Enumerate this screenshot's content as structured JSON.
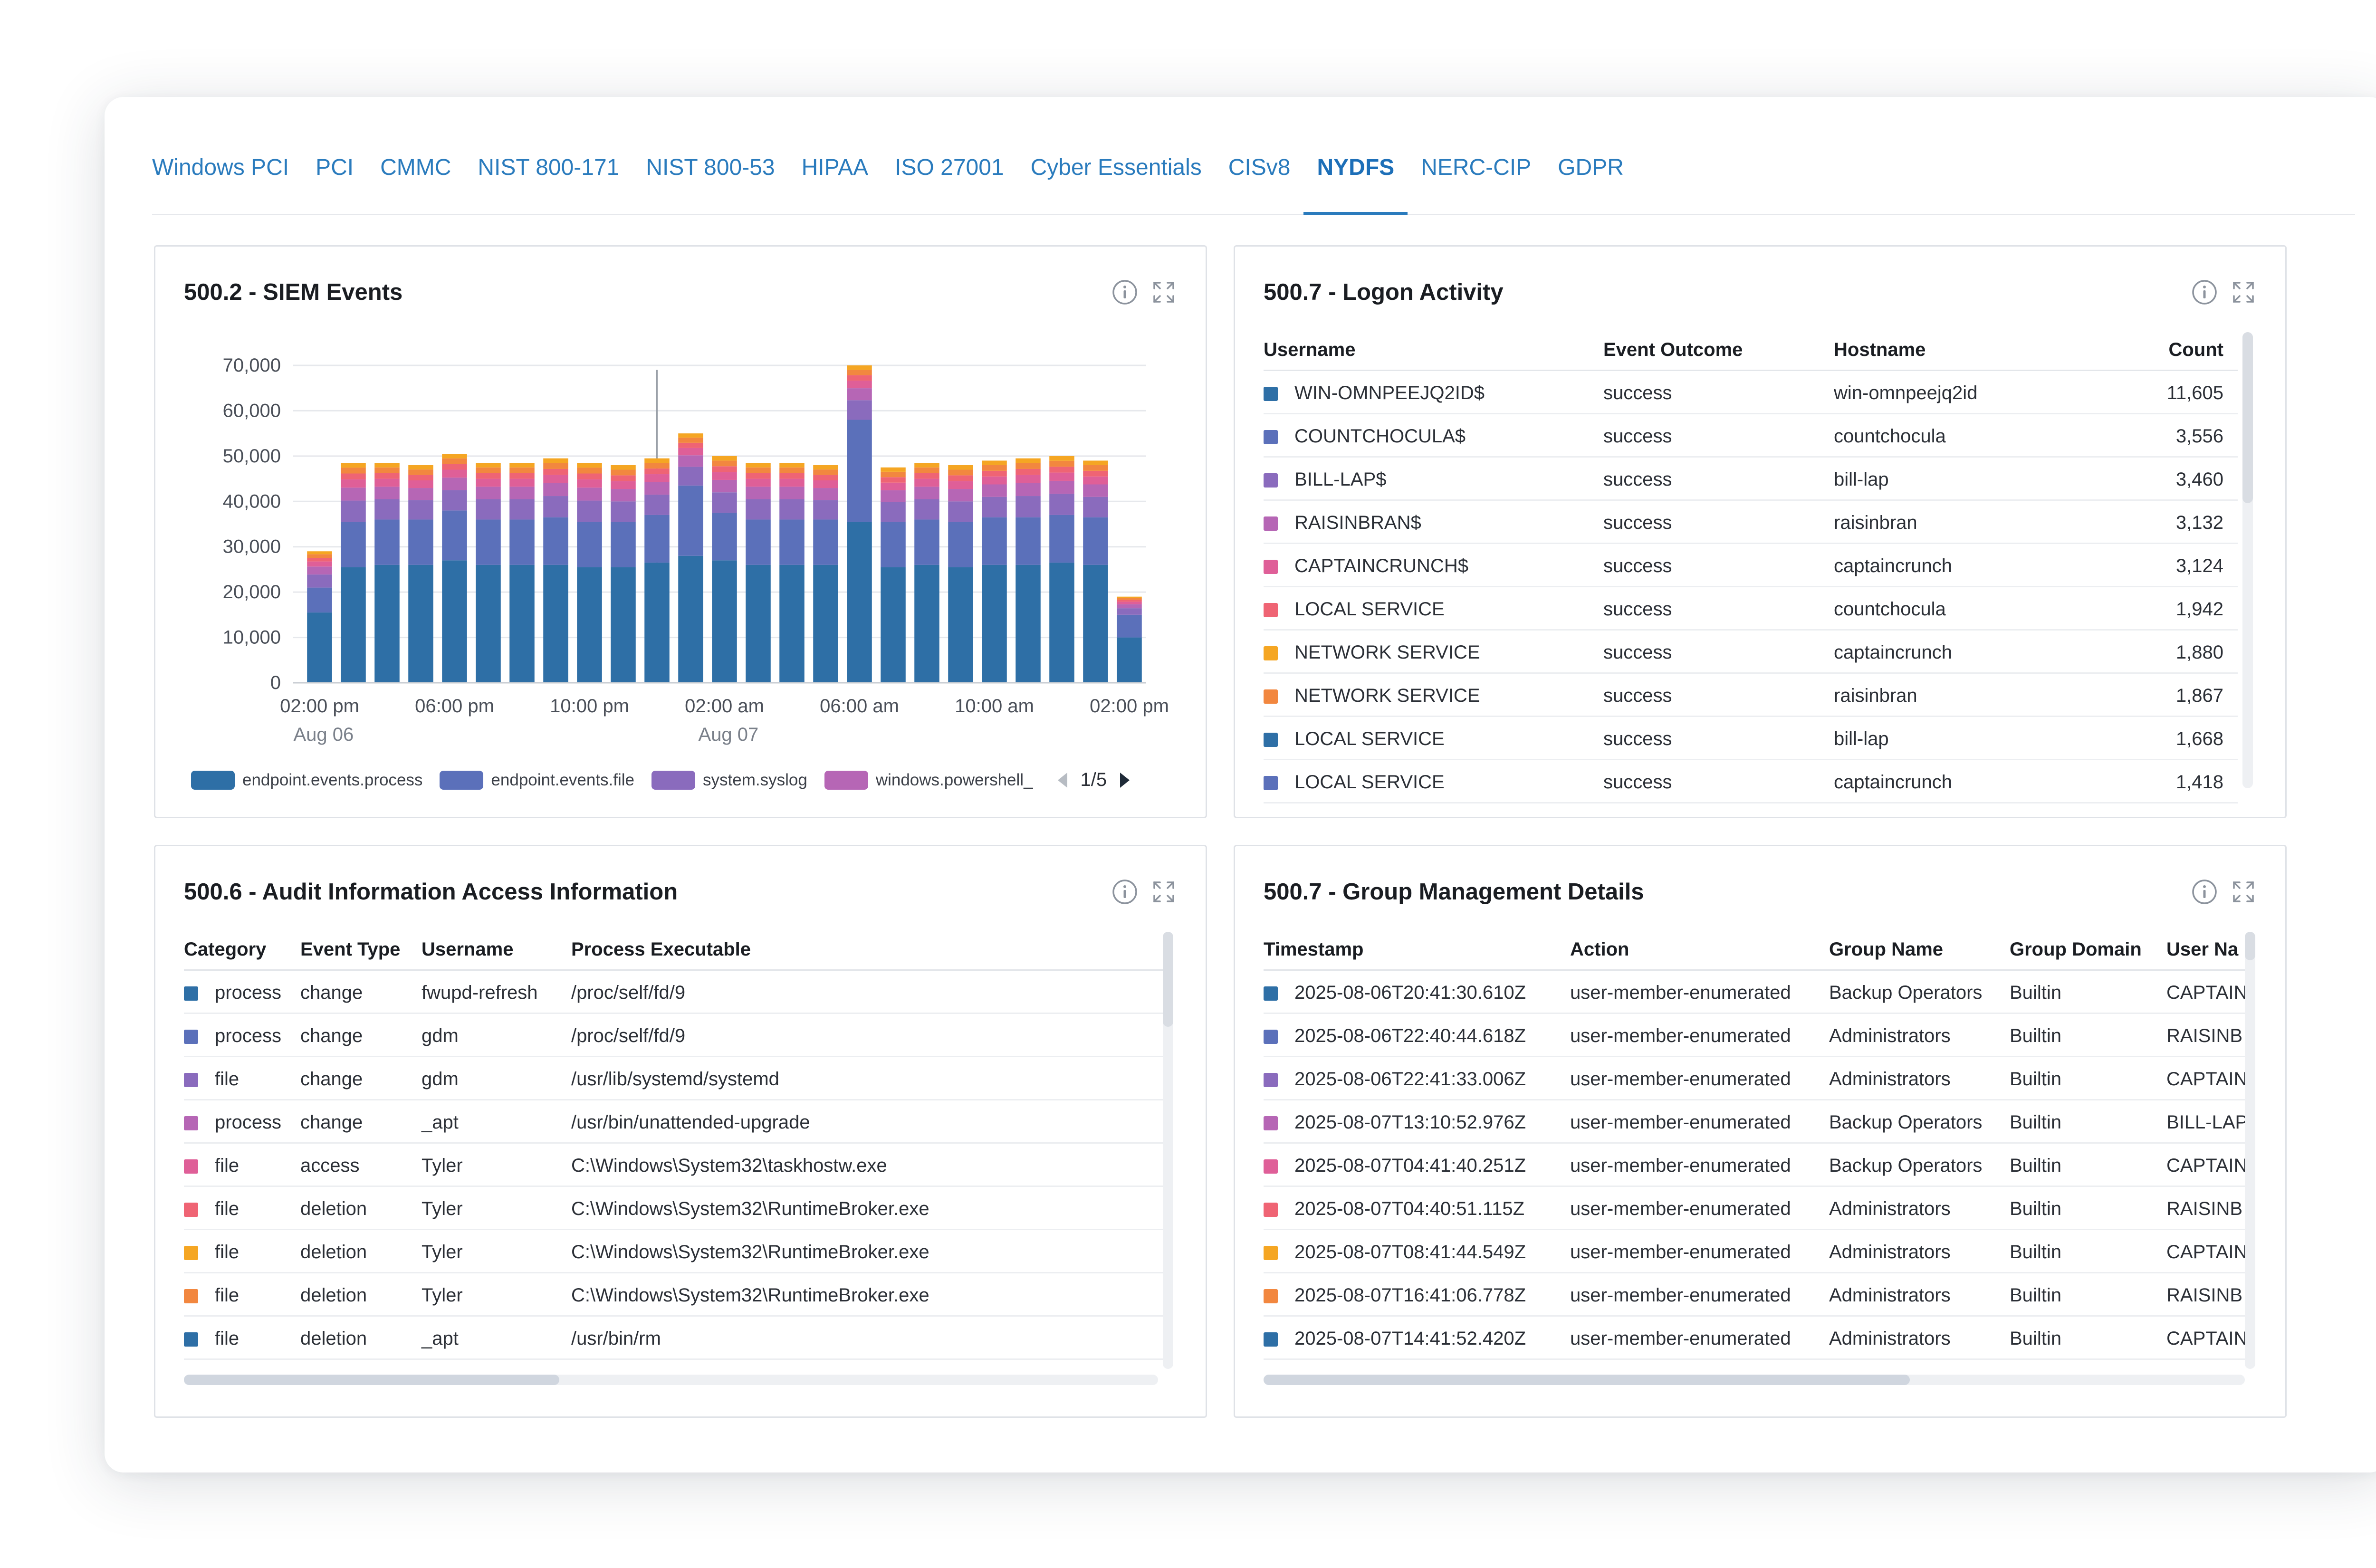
{
  "tabs": [
    "Windows PCI",
    "PCI",
    "CMMC",
    "NIST 800-171",
    "NIST 800-53",
    "HIPAA",
    "ISO 27001",
    "Cyber Essentials",
    "CISv8",
    "NYDFS",
    "NERC-CIP",
    "GDPR"
  ],
  "active_tab": "NYDFS",
  "icons": {
    "info": "info-circle-icon",
    "expand": "expand-arrows-icon"
  },
  "colors": [
    "#2e6fa6",
    "#5b70ba",
    "#8a6bbd",
    "#b666b5",
    "#df5f98",
    "#ef6474",
    "#f5a623",
    "#f2873f"
  ],
  "siem": {
    "title": "500.2 - SIEM Events",
    "legend": [
      "endpoint.events.process",
      "endpoint.events.file",
      "system.syslog",
      "windows.powershell_"
    ],
    "pager": "1/5"
  },
  "chart_data": {
    "type": "bar",
    "stacked": true,
    "title": "500.2 - SIEM Events",
    "y_ticks": [
      "70,000",
      "60,000",
      "50,000",
      "40,000",
      "30,000",
      "20,000",
      "10,000",
      "0"
    ],
    "ylim": [
      0,
      70000
    ],
    "x_ticks": [
      {
        "label": "02:00 pm",
        "sub": "Aug 06",
        "index": 0
      },
      {
        "label": "06:00 pm",
        "sub": "",
        "index": 4
      },
      {
        "label": "10:00 pm",
        "sub": "",
        "index": 8
      },
      {
        "label": "02:00 am",
        "sub": "Aug 07",
        "index": 12
      },
      {
        "label": "06:00 am",
        "sub": "",
        "index": 16
      },
      {
        "label": "10:00 am",
        "sub": "",
        "index": 20
      },
      {
        "label": "02:00 pm",
        "sub": "",
        "index": 24
      }
    ],
    "series_names": [
      "endpoint.events.process",
      "endpoint.events.file",
      "system.syslog",
      "windows.powershell_"
    ],
    "totals": [
      29000,
      48500,
      48500,
      48000,
      50500,
      48500,
      48500,
      49500,
      48500,
      48000,
      49500,
      55000,
      50000,
      48500,
      48500,
      48000,
      70000,
      47500,
      48500,
      48000,
      49000,
      49500,
      50000,
      49000,
      19000
    ],
    "process": [
      15500,
      25500,
      26000,
      26000,
      27000,
      26000,
      26000,
      26000,
      25500,
      25500,
      26500,
      28000,
      27000,
      26000,
      26000,
      26000,
      35500,
      25500,
      26000,
      25500,
      26000,
      26000,
      26500,
      26000,
      10000
    ],
    "file": [
      5500,
      10000,
      10000,
      10000,
      11000,
      10000,
      10000,
      10500,
      10000,
      10000,
      10500,
      15500,
      10500,
      10000,
      10000,
      10000,
      22500,
      10000,
      10000,
      10000,
      10500,
      10500,
      10500,
      10500,
      5000
    ],
    "annotation_line_index": 10
  },
  "logon": {
    "title": "500.7 - Logon Activity",
    "columns": [
      "Username",
      "Event Outcome",
      "Hostname",
      "Count"
    ],
    "rows": [
      [
        "WIN-OMNPEEJQ2ID$",
        "success",
        "win-omnpeejq2id",
        "11,605"
      ],
      [
        "COUNTCHOCULA$",
        "success",
        "countchocula",
        "3,556"
      ],
      [
        "BILL-LAP$",
        "success",
        "bill-lap",
        "3,460"
      ],
      [
        "RAISINBRAN$",
        "success",
        "raisinbran",
        "3,132"
      ],
      [
        "CAPTAINCRUNCH$",
        "success",
        "captaincrunch",
        "3,124"
      ],
      [
        "LOCAL SERVICE",
        "success",
        "countchocula",
        "1,942"
      ],
      [
        "NETWORK SERVICE",
        "success",
        "captaincrunch",
        "1,880"
      ],
      [
        "NETWORK SERVICE",
        "success",
        "raisinbran",
        "1,867"
      ],
      [
        "LOCAL SERVICE",
        "success",
        "bill-lap",
        "1,668"
      ],
      [
        "LOCAL SERVICE",
        "success",
        "captaincrunch",
        "1,418"
      ]
    ]
  },
  "audit": {
    "title": "500.6 - Audit Information Access Information",
    "columns": [
      "Category",
      "Event Type",
      "Username",
      "Process Executable"
    ],
    "rows": [
      [
        "process",
        "change",
        "fwupd-refresh",
        "/proc/self/fd/9"
      ],
      [
        "process",
        "change",
        "gdm",
        "/proc/self/fd/9"
      ],
      [
        "file",
        "change",
        "gdm",
        "/usr/lib/systemd/systemd"
      ],
      [
        "process",
        "change",
        "_apt",
        "/usr/bin/unattended-upgrade"
      ],
      [
        "file",
        "access",
        "Tyler",
        "C:\\Windows\\System32\\taskhostw.exe"
      ],
      [
        "file",
        "deletion",
        "Tyler",
        "C:\\Windows\\System32\\RuntimeBroker.exe"
      ],
      [
        "file",
        "deletion",
        "Tyler",
        "C:\\Windows\\System32\\RuntimeBroker.exe"
      ],
      [
        "file",
        "deletion",
        "Tyler",
        "C:\\Windows\\System32\\RuntimeBroker.exe"
      ],
      [
        "file",
        "deletion",
        "_apt",
        "/usr/bin/rm"
      ]
    ]
  },
  "group": {
    "title": "500.7 - Group Management Details",
    "columns": [
      "Timestamp",
      "Action",
      "Group Name",
      "Group Domain",
      "User Na"
    ],
    "rows": [
      [
        "2025-08-06T20:41:30.610Z",
        "user-member-enumerated",
        "Backup Operators",
        "Builtin",
        "CAPTAIN"
      ],
      [
        "2025-08-06T22:40:44.618Z",
        "user-member-enumerated",
        "Administrators",
        "Builtin",
        "RAISINB"
      ],
      [
        "2025-08-06T22:41:33.006Z",
        "user-member-enumerated",
        "Administrators",
        "Builtin",
        "CAPTAIN"
      ],
      [
        "2025-08-07T13:10:52.976Z",
        "user-member-enumerated",
        "Backup Operators",
        "Builtin",
        "BILL-LAP"
      ],
      [
        "2025-08-07T04:41:40.251Z",
        "user-member-enumerated",
        "Backup Operators",
        "Builtin",
        "CAPTAIN"
      ],
      [
        "2025-08-07T04:40:51.115Z",
        "user-member-enumerated",
        "Administrators",
        "Builtin",
        "RAISINB"
      ],
      [
        "2025-08-07T08:41:44.549Z",
        "user-member-enumerated",
        "Administrators",
        "Builtin",
        "CAPTAIN"
      ],
      [
        "2025-08-07T16:41:06.778Z",
        "user-member-enumerated",
        "Administrators",
        "Builtin",
        "RAISINB"
      ],
      [
        "2025-08-07T14:41:52.420Z",
        "user-member-enumerated",
        "Administrators",
        "Builtin",
        "CAPTAIN"
      ]
    ]
  }
}
